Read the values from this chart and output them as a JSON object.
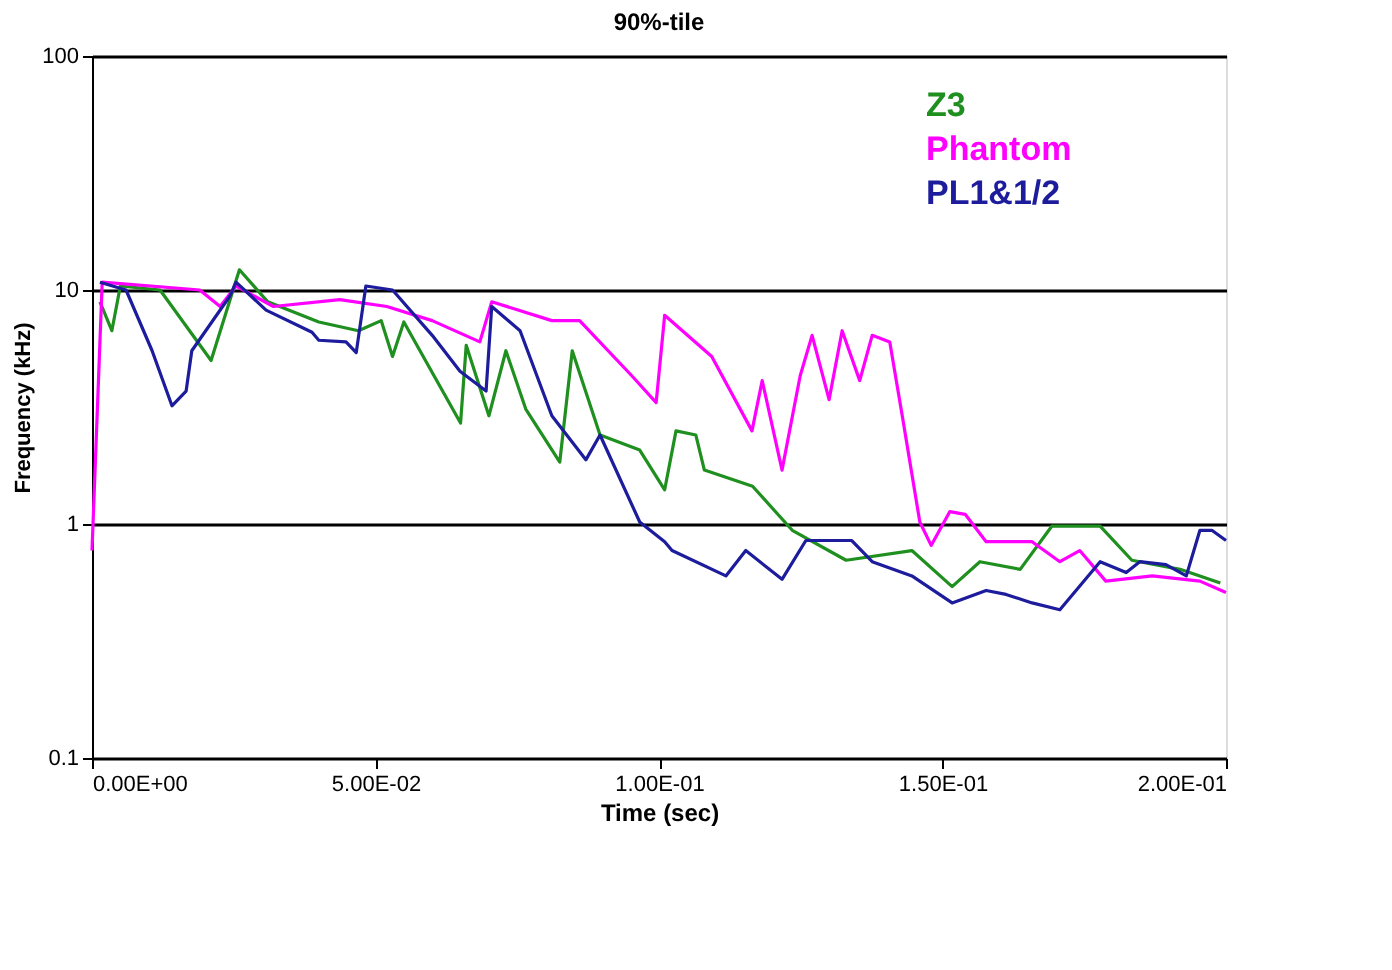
{
  "chart_data": {
    "type": "line",
    "title": "90%-tile",
    "xlabel": "Time (sec)",
    "ylabel": "Frequency (kHz)",
    "log": "y",
    "grid": "y",
    "legend": "top right",
    "marker": "none",
    "line_style": "solid",
    "xlim": [
      0,
      0.2
    ],
    "ylim": [
      0.1,
      100
    ],
    "xticks": [
      {
        "value": 0,
        "label": "0.00E+00"
      },
      {
        "value": 0.05,
        "label": "5.00E-02"
      },
      {
        "value": 0.1,
        "label": "1.00E-01"
      },
      {
        "value": 0.15,
        "label": "1.50E-01"
      },
      {
        "value": 0.2,
        "label": "2.00E-01"
      }
    ],
    "yticks": [
      0.1,
      1,
      10,
      100
    ],
    "series": [
      {
        "name": "Z3",
        "color": "#1f8f1f",
        "x": [
          0.0014,
          0.0035,
          0.005,
          0.012,
          0.021,
          0.026,
          0.031,
          0.04,
          0.047,
          0.051,
          0.053,
          0.055,
          0.065,
          0.066,
          0.07,
          0.073,
          0.0765,
          0.0825,
          0.0847,
          0.0896,
          0.0966,
          0.101,
          0.103,
          0.1065,
          0.108,
          0.1165,
          0.1235,
          0.133,
          0.1446,
          0.1517,
          0.1566,
          0.1637,
          0.1693,
          0.1778,
          0.1834,
          0.1919,
          0.199
        ],
        "values": [
          8.9,
          6.7,
          10.4,
          10,
          5.0,
          12.2,
          8.9,
          7.3,
          6.7,
          7.4,
          5.2,
          7.3,
          2.7,
          5.8,
          2.9,
          5.5,
          3.1,
          1.84,
          5.5,
          2.4,
          2.07,
          1.4,
          2.5,
          2.4,
          1.7,
          1.45,
          0.94,
          0.7,
          0.77,
          0.54,
          0.69,
          0.64,
          0.98,
          0.98,
          0.7,
          0.64,
          0.56
        ]
      },
      {
        "name": "Phantom",
        "color": "#ff00ff",
        "x": [
          0,
          0.0018,
          0.019,
          0.0226,
          0.0254,
          0.032,
          0.0437,
          0.052,
          0.06,
          0.0684,
          0.0705,
          0.0811,
          0.086,
          0.0952,
          0.0995,
          0.101,
          0.1093,
          0.1164,
          0.1182,
          0.1217,
          0.1249,
          0.127,
          0.13,
          0.1323,
          0.1354,
          0.1376,
          0.1407,
          0.1429,
          0.146,
          0.148,
          0.1513,
          0.154,
          0.1577,
          0.1658,
          0.1707,
          0.1742,
          0.1788,
          0.187,
          0.1954,
          0.2
        ],
        "values": [
          0.77,
          10.8,
          10,
          8.5,
          10.4,
          8.5,
          9.1,
          8.5,
          7.4,
          6.0,
          8.9,
          7.4,
          7.4,
          4.3,
          3.3,
          7.8,
          5.2,
          2.5,
          4.1,
          1.7,
          4.3,
          6.4,
          3.4,
          6.7,
          4.1,
          6.4,
          6.0,
          2.9,
          1.02,
          0.81,
          1.13,
          1.1,
          0.84,
          0.84,
          0.69,
          0.77,
          0.57,
          0.6,
          0.57,
          0.51
        ]
      },
      {
        "name": "PL1&1/2",
        "color": "#1c1c9c",
        "x": [
          0.0014,
          0.006,
          0.0106,
          0.0141,
          0.0166,
          0.0176,
          0.0243,
          0.0254,
          0.0307,
          0.0388,
          0.04,
          0.0448,
          0.0466,
          0.0483,
          0.053,
          0.06,
          0.0649,
          0.0695,
          0.0705,
          0.0755,
          0.0811,
          0.0871,
          0.0896,
          0.0966,
          0.101,
          0.1023,
          0.1118,
          0.1153,
          0.1217,
          0.1259,
          0.134,
          0.1376,
          0.1446,
          0.1517,
          0.1577,
          0.1612,
          0.1658,
          0.1707,
          0.1778,
          0.1824,
          0.1848,
          0.1894,
          0.193,
          0.1954,
          0.1975,
          0.2
        ],
        "values": [
          10.8,
          10,
          5.5,
          3.2,
          3.7,
          5.5,
          9.4,
          10.8,
          8.2,
          6.6,
          6.1,
          6.0,
          5.4,
          10.4,
          10,
          6.4,
          4.5,
          3.7,
          8.5,
          6.7,
          2.9,
          1.88,
          2.4,
          1.02,
          0.84,
          0.77,
          0.6,
          0.77,
          0.58,
          0.85,
          0.85,
          0.69,
          0.6,
          0.46,
          0.52,
          0.5,
          0.46,
          0.43,
          0.69,
          0.62,
          0.69,
          0.67,
          0.6,
          0.94,
          0.94,
          0.85
        ]
      }
    ]
  }
}
